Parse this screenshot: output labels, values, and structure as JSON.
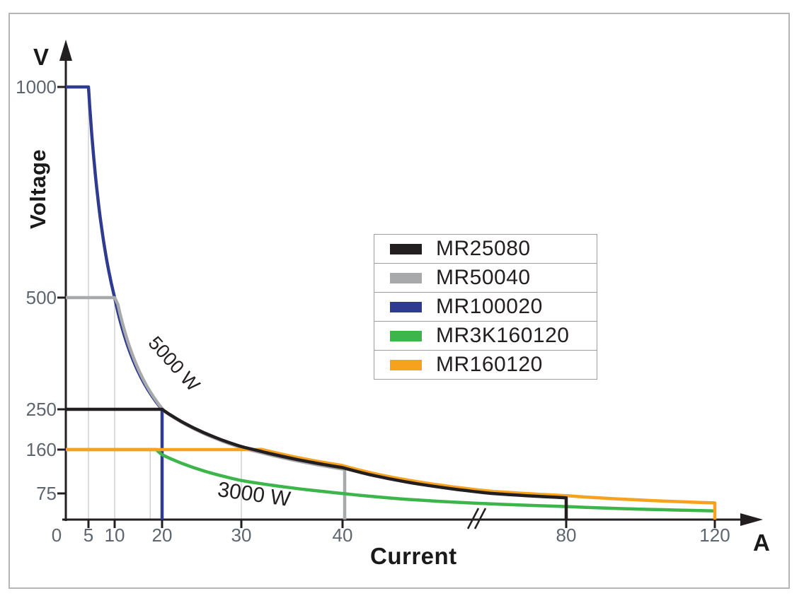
{
  "chart_data": {
    "type": "line",
    "title": "",
    "ylabel": "Voltage",
    "y_unit": "V",
    "xlabel": "Current",
    "x_unit": "A",
    "origin_label": "0",
    "x_ticks": [
      0,
      5,
      10,
      20,
      30,
      40,
      80,
      120
    ],
    "y_ticks": [
      75,
      160,
      250,
      500,
      1000
    ],
    "x_axis_break_between": [
      40,
      80
    ],
    "grid_lines": [
      {
        "x": 5,
        "top_v": 1000
      },
      {
        "x": 10,
        "top_v": 500
      },
      {
        "x": 17.5,
        "top_v": 160
      },
      {
        "x": 30,
        "top_v": 160
      }
    ],
    "annotations": [
      {
        "text": "5000 W"
      },
      {
        "text": "3000 W"
      }
    ],
    "series": [
      {
        "name": "MR25080",
        "color": "#231f20",
        "max_voltage_v": 250,
        "corner_current_a": 20,
        "max_current_a": 80,
        "power_w": 5000,
        "ends_with_drop": true
      },
      {
        "name": "MR50040",
        "color": "#a7a9aa",
        "max_voltage_v": 500,
        "corner_current_a": 10,
        "max_current_a": 40,
        "power_w": 5000,
        "ends_with_drop": true
      },
      {
        "name": "MR100020",
        "color": "#2e3b90",
        "max_voltage_v": 1000,
        "corner_current_a": 5,
        "max_current_a": 20,
        "power_w": 5000,
        "ends_with_drop": true
      },
      {
        "name": "MR3K160120",
        "color": "#3cb54a",
        "max_voltage_v": 160,
        "corner_current_a": 18.75,
        "max_current_a": 120,
        "power_w": 3000,
        "ends_with_drop": false
      },
      {
        "name": "MR160120",
        "color": "#f7a21e",
        "max_voltage_v": 160,
        "corner_current_a": 31.25,
        "max_current_a": 120,
        "power_w": 5000,
        "ends_with_drop": true
      }
    ],
    "legend": {
      "position": "center",
      "entries": [
        "MR25080",
        "MR50040",
        "MR100020",
        "MR3K160120",
        "MR160120"
      ]
    },
    "axis_color": "#231f20",
    "grid_color": "#c9cacb",
    "tick_label_color": "#5d6670"
  }
}
